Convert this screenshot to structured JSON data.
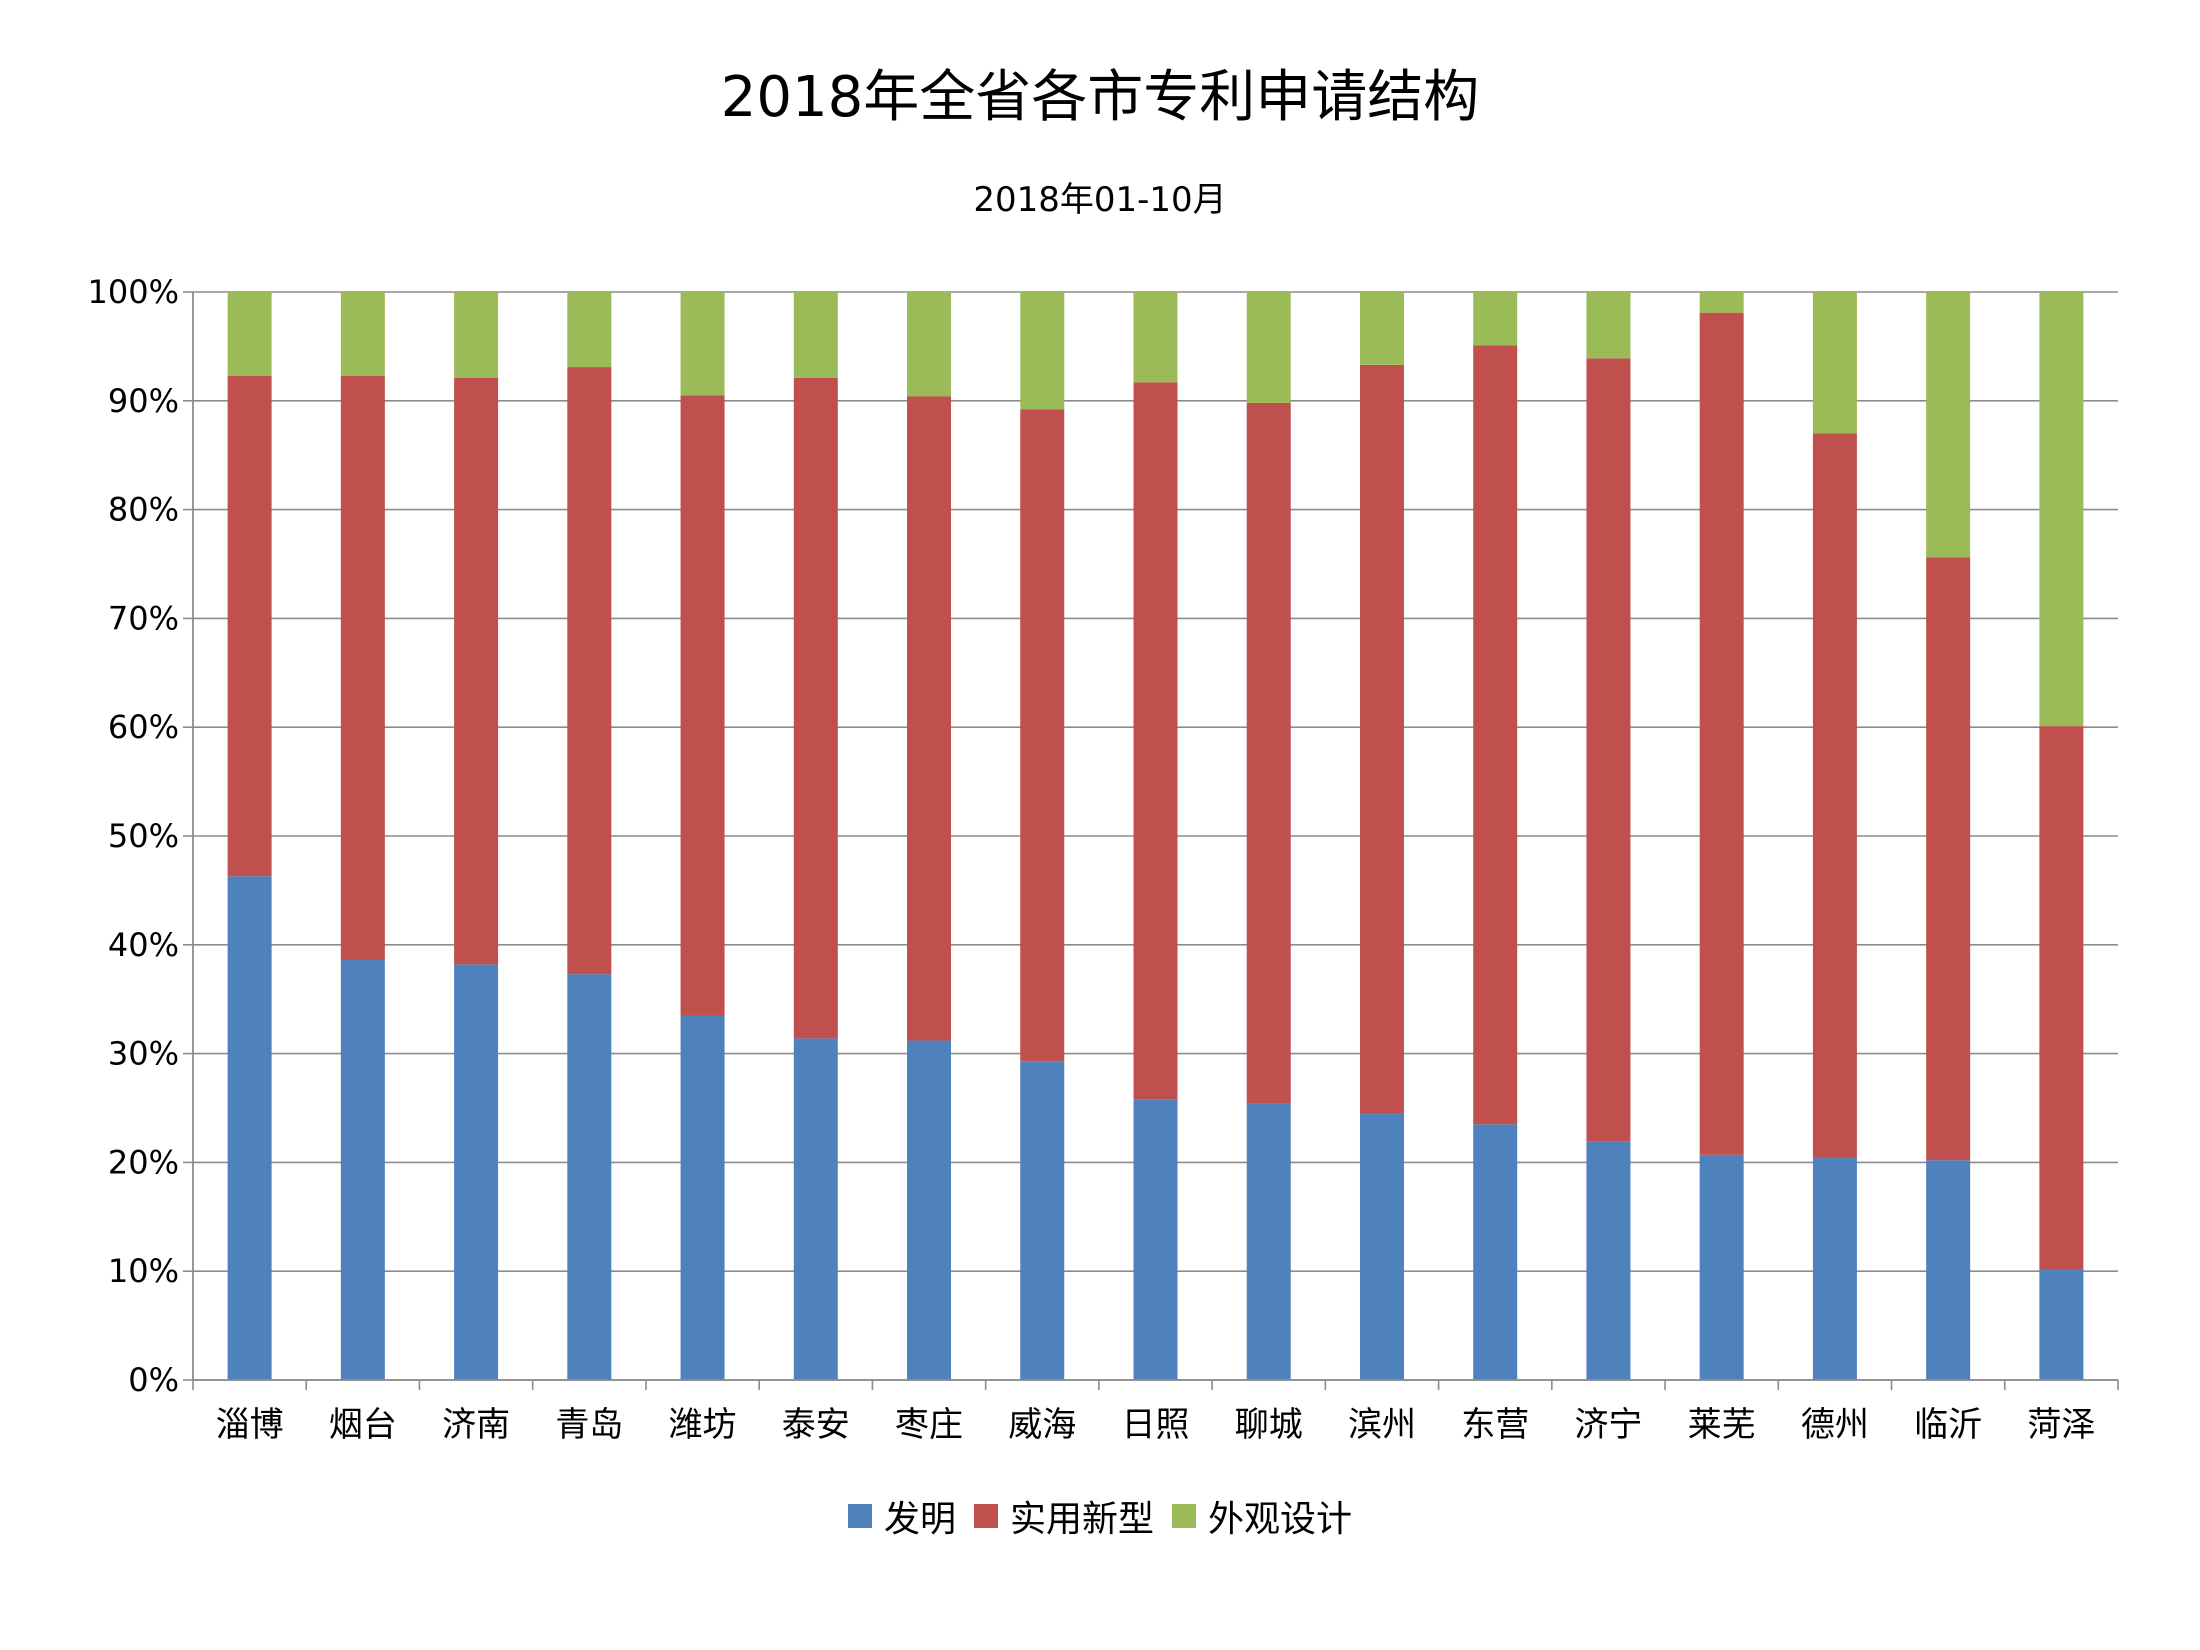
{
  "chart_data": {
    "type": "bar",
    "stacked": true,
    "percent": true,
    "title": "2018年全省各市专利申请结构",
    "subtitle": "2018年01-10月",
    "xlabel": "",
    "ylabel": "",
    "ylim": [
      0,
      100
    ],
    "yticks": [
      "0%",
      "10%",
      "20%",
      "30%",
      "40%",
      "50%",
      "60%",
      "70%",
      "80%",
      "90%",
      "100%"
    ],
    "grid": true,
    "legend_position": "bottom",
    "categories": [
      "淄博",
      "烟台",
      "济南",
      "青岛",
      "潍坊",
      "泰安",
      "枣庄",
      "威海",
      "日照",
      "聊城",
      "滨州",
      "东营",
      "济宁",
      "莱芜",
      "德州",
      "临沂",
      "菏泽"
    ],
    "series": [
      {
        "name": "发明",
        "color": "#4F81BD",
        "values": [
          46.3,
          38.6,
          38.2,
          37.3,
          33.5,
          31.4,
          31.2,
          29.3,
          25.8,
          25.4,
          24.5,
          23.5,
          21.9,
          20.7,
          20.4,
          20.2,
          10.2
        ]
      },
      {
        "name": "实用新型",
        "color": "#C0504D",
        "values": [
          46.0,
          53.7,
          53.9,
          55.8,
          57.0,
          60.7,
          59.2,
          59.9,
          65.9,
          64.4,
          68.8,
          71.6,
          72.0,
          77.4,
          66.6,
          55.4,
          49.9
        ]
      },
      {
        "name": "外观设计",
        "color": "#9BBB59",
        "values": [
          7.7,
          7.7,
          7.9,
          6.9,
          9.5,
          7.9,
          9.6,
          10.8,
          8.3,
          10.2,
          6.7,
          4.9,
          6.1,
          1.9,
          13.0,
          24.4,
          39.9
        ]
      }
    ]
  }
}
